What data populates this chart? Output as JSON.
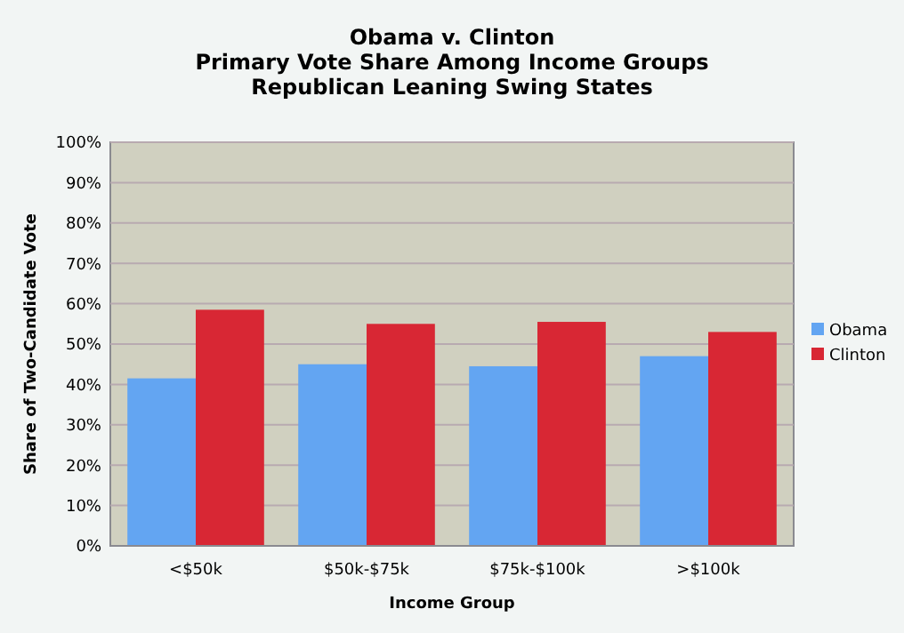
{
  "chart_data": {
    "type": "bar",
    "title": "Obama v. Clinton",
    "subtitle": "Primary Vote Share Among Income Groups\nRepublican Leaning Swing States",
    "xlabel": "Income Group",
    "ylabel": "Share of Two-Candidate Vote",
    "categories": [
      "<$50k",
      "$50k-$75k",
      "$75k-$100k",
      ">$100k"
    ],
    "series": [
      {
        "name": "Obama",
        "color": "#63a5f2",
        "values": [
          41.5,
          45,
          44.5,
          47
        ]
      },
      {
        "name": "Clinton",
        "color": "#d82734",
        "values": [
          58.5,
          55,
          55.5,
          53
        ]
      }
    ],
    "ylim": [
      0,
      100
    ],
    "yticks": [
      {
        "value": 0,
        "label": "0%"
      },
      {
        "value": 10,
        "label": "10%"
      },
      {
        "value": 20,
        "label": "20%"
      },
      {
        "value": 30,
        "label": "30%"
      },
      {
        "value": 40,
        "label": "40%"
      },
      {
        "value": 50,
        "label": "50%"
      },
      {
        "value": 60,
        "label": "60%"
      },
      {
        "value": 70,
        "label": "70%"
      },
      {
        "value": 80,
        "label": "80%"
      },
      {
        "value": 90,
        "label": "90%"
      },
      {
        "value": 100,
        "label": "100%"
      }
    ],
    "grid": "y",
    "legend": "right"
  }
}
